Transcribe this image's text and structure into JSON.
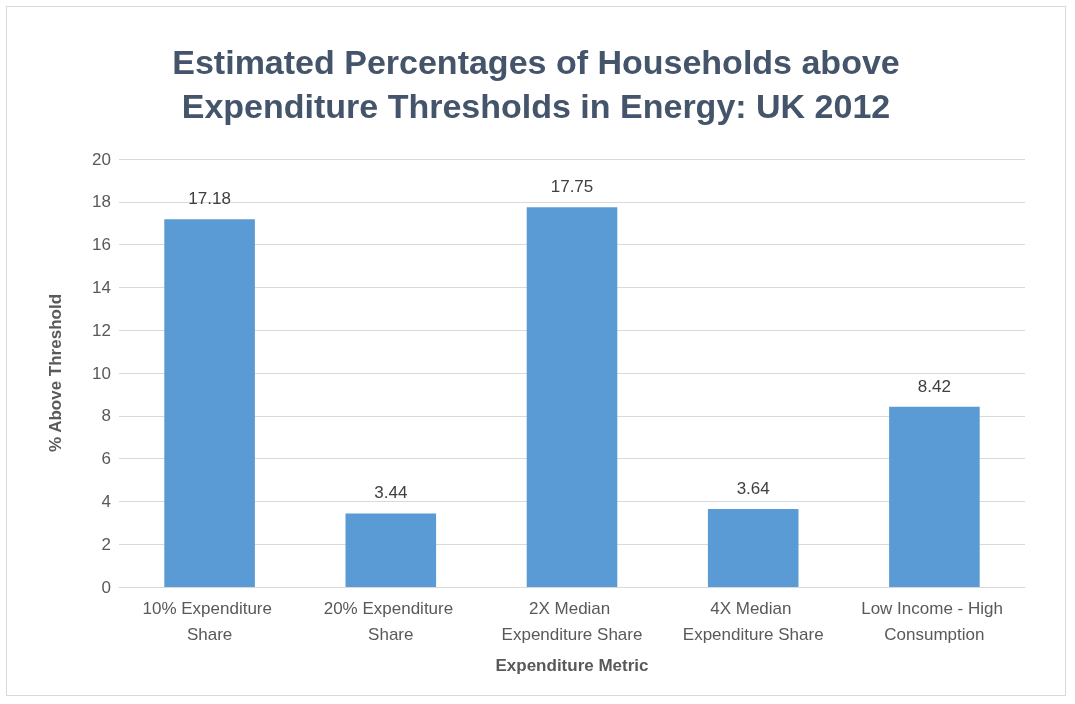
{
  "chart_data": {
    "type": "bar",
    "title": "Estimated Percentages of Households above\nExpenditure Thresholds in Energy: UK 2012",
    "xlabel": "Expenditure Metric",
    "ylabel": "% Above Threshold",
    "categories": [
      "10% Expenditure Share",
      "20% Expenditure Share",
      "2X Median Expenditure Share",
      "4X Median Expenditure Share",
      "Low Income - High Consumption"
    ],
    "values": [
      17.18,
      3.44,
      17.75,
      3.64,
      8.42
    ],
    "color": "#5b9bd5",
    "ylim": [
      0,
      20
    ],
    "yticks": [
      0,
      2,
      4,
      6,
      8,
      10,
      12,
      14,
      16,
      18,
      20
    ],
    "grid": "y",
    "data_labels": true
  }
}
